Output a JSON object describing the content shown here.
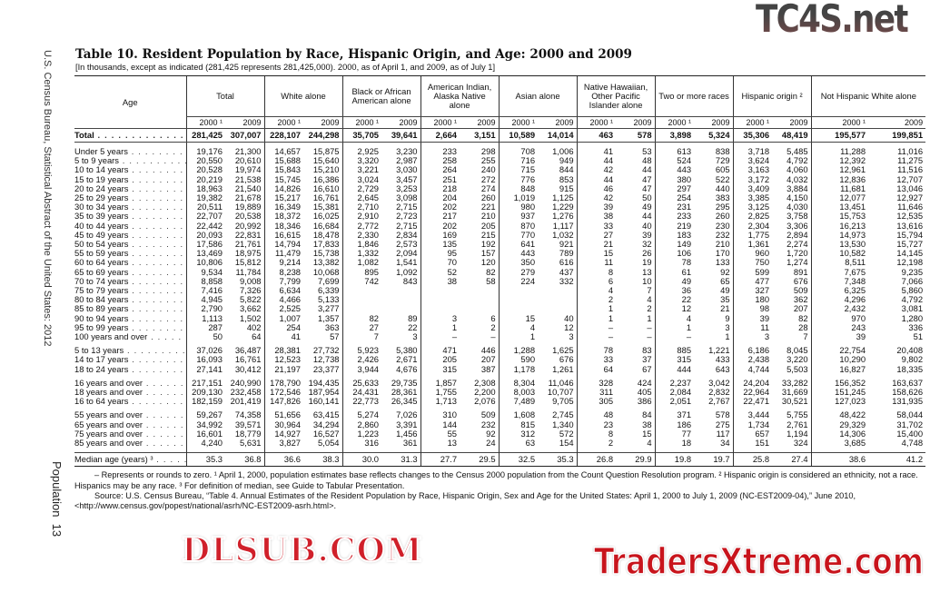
{
  "sidebar_text": "U.S. Census Bureau, Statistical Abstract of the United States: 2012",
  "page_label": "Population",
  "page_number": "13",
  "title": "Table 10. Resident Population by Race, Hispanic Origin, and Age: 2000 and 2009",
  "subtitle": "[In thousands, except as indicated (281,425 represents 281,425,000). 2000, as of April 1, and 2009, as of July 1]",
  "table": {
    "age_header": "Age",
    "groups": [
      "Total",
      "White alone",
      "Black or African American alone",
      "American Indian, Alaska Native alone",
      "Asian alone",
      "Native Hawaiian, Other Pacific Islander alone",
      "Two or more races",
      "Hispanic origin ²",
      "Not Hispanic White alone"
    ],
    "year_a": "2000 ¹",
    "year_b": "2009",
    "total_row": {
      "age": "Total",
      "values": [
        "281,425",
        "307,007",
        "228,107",
        "244,298",
        "35,705",
        "39,641",
        "2,664",
        "3,151",
        "10,589",
        "14,014",
        "463",
        "578",
        "3,898",
        "5,324",
        "35,306",
        "48,419",
        "195,577",
        "199,851"
      ]
    },
    "row_groups": [
      [
        {
          "age": "Under 5 years",
          "values": [
            "19,176",
            "21,300",
            "14,657",
            "15,875",
            "2,925",
            "3,230",
            "233",
            "298",
            "708",
            "1,006",
            "41",
            "53",
            "613",
            "838",
            "3,718",
            "5,485",
            "11,288",
            "11,016"
          ]
        },
        {
          "age": "5 to 9 years",
          "values": [
            "20,550",
            "20,610",
            "15,688",
            "15,640",
            "3,320",
            "2,987",
            "258",
            "255",
            "716",
            "949",
            "44",
            "48",
            "524",
            "729",
            "3,624",
            "4,792",
            "12,392",
            "11,275"
          ]
        },
        {
          "age": "10 to 14 years",
          "values": [
            "20,528",
            "19,974",
            "15,843",
            "15,210",
            "3,221",
            "3,030",
            "264",
            "240",
            "715",
            "844",
            "42",
            "44",
            "443",
            "605",
            "3,163",
            "4,060",
            "12,961",
            "11,516"
          ]
        },
        {
          "age": "15 to 19 years",
          "values": [
            "20,219",
            "21,538",
            "15,745",
            "16,386",
            "3,024",
            "3,457",
            "251",
            "272",
            "776",
            "853",
            "44",
            "47",
            "380",
            "522",
            "3,172",
            "4,032",
            "12,836",
            "12,707"
          ]
        },
        {
          "age": "20 to 24 years",
          "values": [
            "18,963",
            "21,540",
            "14,826",
            "16,610",
            "2,729",
            "3,253",
            "218",
            "274",
            "848",
            "915",
            "46",
            "47",
            "297",
            "440",
            "3,409",
            "3,884",
            "11,681",
            "13,046"
          ]
        },
        {
          "age": "25 to 29 years",
          "values": [
            "19,382",
            "21,678",
            "15,217",
            "16,761",
            "2,645",
            "3,098",
            "204",
            "260",
            "1,019",
            "1,125",
            "42",
            "50",
            "254",
            "383",
            "3,385",
            "4,150",
            "12,077",
            "12,927"
          ]
        },
        {
          "age": "30 to 34 years",
          "values": [
            "20,511",
            "19,889",
            "16,349",
            "15,381",
            "2,710",
            "2,715",
            "202",
            "221",
            "980",
            "1,229",
            "39",
            "49",
            "231",
            "295",
            "3,125",
            "4,030",
            "13,451",
            "11,646"
          ]
        },
        {
          "age": "35 to 39 years",
          "values": [
            "22,707",
            "20,538",
            "18,372",
            "16,025",
            "2,910",
            "2,723",
            "217",
            "210",
            "937",
            "1,276",
            "38",
            "44",
            "233",
            "260",
            "2,825",
            "3,758",
            "15,753",
            "12,535"
          ]
        },
        {
          "age": "40 to 44 years",
          "values": [
            "22,442",
            "20,992",
            "18,346",
            "16,684",
            "2,772",
            "2,715",
            "202",
            "205",
            "870",
            "1,117",
            "33",
            "40",
            "219",
            "230",
            "2,304",
            "3,306",
            "16,213",
            "13,616"
          ]
        },
        {
          "age": "45 to 49 years",
          "values": [
            "20,093",
            "22,831",
            "16,615",
            "18,478",
            "2,330",
            "2,834",
            "169",
            "215",
            "770",
            "1,032",
            "27",
            "39",
            "183",
            "232",
            "1,775",
            "2,894",
            "14,973",
            "15,794"
          ]
        },
        {
          "age": "50 to 54 years",
          "values": [
            "17,586",
            "21,761",
            "14,794",
            "17,833",
            "1,846",
            "2,573",
            "135",
            "192",
            "641",
            "921",
            "21",
            "32",
            "149",
            "210",
            "1,361",
            "2,274",
            "13,530",
            "15,727"
          ]
        },
        {
          "age": "55 to 59 years",
          "values": [
            "13,469",
            "18,975",
            "11,479",
            "15,738",
            "1,332",
            "2,094",
            "95",
            "157",
            "443",
            "789",
            "15",
            "26",
            "106",
            "170",
            "960",
            "1,720",
            "10,582",
            "14,145"
          ]
        },
        {
          "age": "60 to 64 years",
          "values": [
            "10,806",
            "15,812",
            "9,214",
            "13,382",
            "1,082",
            "1,541",
            "70",
            "120",
            "350",
            "616",
            "11",
            "19",
            "78",
            "133",
            "750",
            "1,274",
            "8,511",
            "12,198"
          ]
        },
        {
          "age": "65 to 69 years",
          "values": [
            "9,534",
            "11,784",
            "8,238",
            "10,068",
            "895",
            "1,092",
            "52",
            "82",
            "279",
            "437",
            "8",
            "13",
            "61",
            "92",
            "599",
            "891",
            "7,675",
            "9,235"
          ]
        },
        {
          "age": "70 to 74 years",
          "values": [
            "8,858",
            "9,008",
            "7,799",
            "7,699",
            "742",
            "843",
            "38",
            "58",
            "224",
            "332",
            "6",
            "10",
            "49",
            "65",
            "477",
            "676",
            "7,348",
            "7,066"
          ]
        },
        {
          "age": "75 to 79 years",
          "values": [
            "7,416",
            "7,326",
            "6,634",
            "6,339",
            "",
            "",
            "",
            "",
            "",
            "",
            "4",
            "7",
            "36",
            "49",
            "327",
            "509",
            "6,325",
            "5,860"
          ]
        },
        {
          "age": "80 to 84 years",
          "values": [
            "4,945",
            "5,822",
            "4,466",
            "5,133",
            "",
            "",
            "",
            "",
            "",
            "",
            "2",
            "4",
            "22",
            "35",
            "180",
            "362",
            "4,296",
            "4,792"
          ]
        },
        {
          "age": "85 to 89 years",
          "values": [
            "2,790",
            "3,662",
            "2,525",
            "3,277",
            "",
            "",
            "",
            "",
            "",
            "",
            "1",
            "2",
            "12",
            "21",
            "98",
            "207",
            "2,432",
            "3,081"
          ]
        },
        {
          "age": "90 to 94 years",
          "values": [
            "1,113",
            "1,502",
            "1,007",
            "1,357",
            "82",
            "89",
            "3",
            "6",
            "15",
            "40",
            "1",
            "1",
            "4",
            "9",
            "39",
            "82",
            "970",
            "1,280"
          ]
        },
        {
          "age": "95 to 99 years",
          "values": [
            "287",
            "402",
            "254",
            "363",
            "27",
            "22",
            "1",
            "2",
            "4",
            "12",
            "–",
            "–",
            "1",
            "3",
            "11",
            "28",
            "243",
            "336"
          ]
        },
        {
          "age": "100 years and over",
          "values": [
            "50",
            "64",
            "41",
            "57",
            "7",
            "3",
            "–",
            "–",
            "1",
            "3",
            "–",
            "–",
            "–",
            "1",
            "3",
            "7",
            "39",
            "51"
          ]
        }
      ],
      [
        {
          "age": "5 to 13 years",
          "values": [
            "37,026",
            "36,487",
            "28,381",
            "27,732",
            "5,923",
            "5,380",
            "471",
            "446",
            "1,288",
            "1,625",
            "78",
            "83",
            "885",
            "1,221",
            "6,186",
            "8,045",
            "22,754",
            "20,408"
          ]
        },
        {
          "age": "14 to 17 years",
          "values": [
            "16,093",
            "16,761",
            "12,523",
            "12,738",
            "2,426",
            "2,671",
            "205",
            "207",
            "590",
            "676",
            "33",
            "37",
            "315",
            "433",
            "2,438",
            "3,220",
            "10,290",
            "9,802"
          ]
        },
        {
          "age": "18 to 24 years",
          "values": [
            "27,141",
            "30,412",
            "21,197",
            "23,377",
            "3,944",
            "4,676",
            "315",
            "387",
            "1,178",
            "1,261",
            "64",
            "67",
            "444",
            "643",
            "4,744",
            "5,503",
            "16,827",
            "18,335"
          ]
        }
      ],
      [
        {
          "age": "16 years and over",
          "values": [
            "217,151",
            "240,990",
            "178,790",
            "194,435",
            "25,633",
            "29,735",
            "1,857",
            "2,308",
            "8,304",
            "11,046",
            "328",
            "424",
            "2,237",
            "3,042",
            "24,204",
            "33,282",
            "156,352",
            "163,637"
          ]
        },
        {
          "age": "18 years and over",
          "values": [
            "209,130",
            "232,458",
            "172,546",
            "187,954",
            "24,431",
            "28,361",
            "1,755",
            "2,200",
            "8,003",
            "10,707",
            "311",
            "405",
            "2,084",
            "2,832",
            "22,964",
            "31,669",
            "151,245",
            "158,626"
          ]
        },
        {
          "age": "16 to 64 years",
          "values": [
            "182,159",
            "201,419",
            "147,826",
            "160,141",
            "22,773",
            "26,345",
            "1,713",
            "2,076",
            "7,489",
            "9,705",
            "305",
            "386",
            "2,051",
            "2,767",
            "22,471",
            "30,521",
            "127,023",
            "131,935"
          ]
        }
      ],
      [
        {
          "age": "55 years and over",
          "values": [
            "59,267",
            "74,358",
            "51,656",
            "63,415",
            "5,274",
            "7,026",
            "310",
            "509",
            "1,608",
            "2,745",
            "48",
            "84",
            "371",
            "578",
            "3,444",
            "5,755",
            "48,422",
            "58,044"
          ]
        },
        {
          "age": "65 years and over",
          "values": [
            "34,992",
            "39,571",
            "30,964",
            "34,294",
            "2,860",
            "3,391",
            "144",
            "232",
            "815",
            "1,340",
            "23",
            "38",
            "186",
            "275",
            "1,734",
            "2,761",
            "29,329",
            "31,702"
          ]
        },
        {
          "age": "75 years and over",
          "values": [
            "16,601",
            "18,779",
            "14,927",
            "16,527",
            "1,223",
            "1,456",
            "55",
            "92",
            "312",
            "572",
            "8",
            "15",
            "77",
            "117",
            "657",
            "1,194",
            "14,306",
            "15,400"
          ]
        },
        {
          "age": "85 years and over",
          "values": [
            "4,240",
            "5,631",
            "3,827",
            "5,054",
            "316",
            "361",
            "13",
            "24",
            "63",
            "154",
            "2",
            "4",
            "18",
            "34",
            "151",
            "324",
            "3,685",
            "4,748"
          ]
        }
      ]
    ],
    "median_row": {
      "age": "Median age (years) ³",
      "values": [
        "35.3",
        "36.8",
        "36.6",
        "38.3",
        "30.0",
        "31.3",
        "27.7",
        "29.5",
        "32.5",
        "35.3",
        "26.8",
        "29.9",
        "19.8",
        "19.7",
        "25.8",
        "27.4",
        "38.6",
        "41.2"
      ]
    }
  },
  "footnotes": "– Represents or rounds to zero. ¹ April 1, 2000, population estimates base reflects changes to the Census 2000 population from the Count Question Resolution program. ² Hispanic origin is considered an ethnicity, not a race. Hispanics may be any race. ³ For definition of median, see Guide to Tabular Presentation.",
  "source": "Source: U.S. Census Bureau, “Table 4. Annual Estimates of the Resident Population by Race, Hispanic Origin, Sex and Age for the United States: April 1, 2000 to July 1, 2009 (NC-EST2009-04),” June 2010, <http://www.census.gov/popest/national/asrh/NC-EST2009-asrh.html>.",
  "watermarks": {
    "top_right": "TC4S.net",
    "center": "DLSUB.COM",
    "bottom_right": "TradersXtreme.com",
    "center_color": "#d0202a",
    "bottom_color": "#c8141c"
  }
}
